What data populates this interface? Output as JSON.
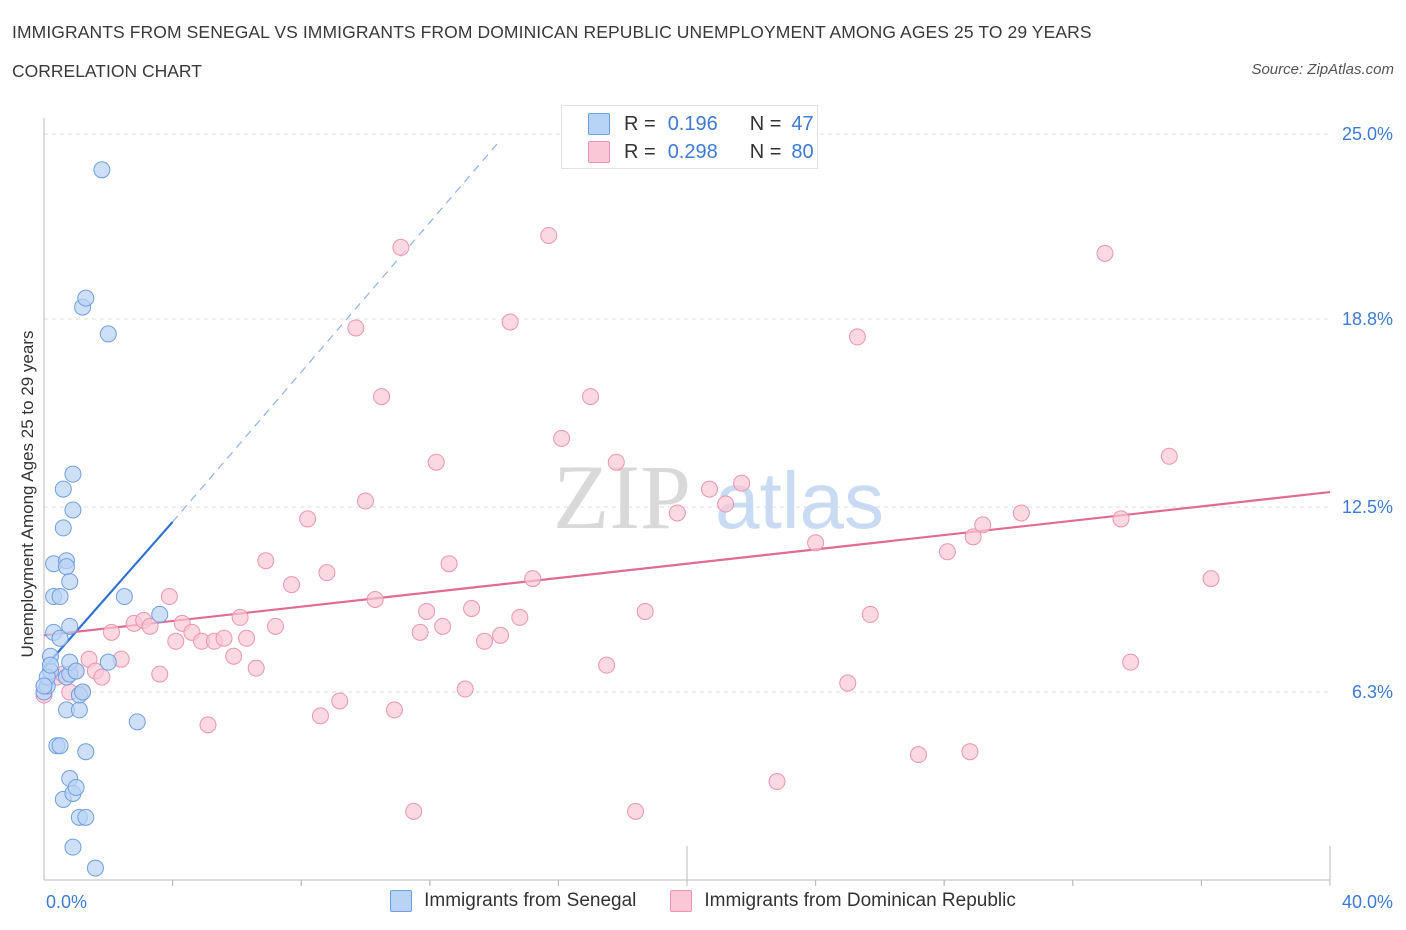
{
  "title": "IMMIGRANTS FROM SENEGAL VS IMMIGRANTS FROM DOMINICAN REPUBLIC UNEMPLOYMENT AMONG AGES 25 TO 29 YEARS",
  "subtitle": "CORRELATION CHART",
  "source": "Source: ZipAtlas.com",
  "watermark": {
    "zip": "ZIP",
    "atlas": "atlas"
  },
  "legend": {
    "r_label": "R =",
    "n_label": "N =",
    "senegal": {
      "r": "0.196",
      "n": "47"
    },
    "dominican": {
      "r": "0.298",
      "n": "80"
    }
  },
  "colors": {
    "senegal_fill": "#b9d3f5",
    "senegal_stroke": "#6f9fe0",
    "senegal_line": "#2f72d0",
    "dominican_fill": "#f9c7d6",
    "dominican_stroke": "#ec94b1",
    "dominican_line": "#e06b94",
    "axis_text": "#3d7bd6",
    "grid": "#dddddd"
  },
  "chart_data": {
    "type": "scatter",
    "ylabel": "Unemployment Among Ages 25 to 29 years",
    "x_tick_labels": [
      "0.0%",
      "40.0%"
    ],
    "y_tick_labels": [
      "6.3%",
      "12.5%",
      "18.8%",
      "25.0%"
    ],
    "y_ticks": [
      6.3,
      12.5,
      18.8,
      25.0
    ],
    "xlim": [
      0,
      40
    ],
    "ylim": [
      0,
      25.5
    ],
    "series": [
      {
        "name": "Immigrants from Senegal",
        "points": [
          [
            0.0,
            6.3
          ],
          [
            0.1,
            6.5
          ],
          [
            0.2,
            7.0
          ],
          [
            0.2,
            7.5
          ],
          [
            0.3,
            8.3
          ],
          [
            0.3,
            10.6
          ],
          [
            0.3,
            9.5
          ],
          [
            0.4,
            4.5
          ],
          [
            0.5,
            4.5
          ],
          [
            0.5,
            8.1
          ],
          [
            0.5,
            9.5
          ],
          [
            0.6,
            2.7
          ],
          [
            0.6,
            11.8
          ],
          [
            0.6,
            13.1
          ],
          [
            0.7,
            10.7
          ],
          [
            0.7,
            10.5
          ],
          [
            0.7,
            6.8
          ],
          [
            0.7,
            5.7
          ],
          [
            0.8,
            3.4
          ],
          [
            0.8,
            6.9
          ],
          [
            0.8,
            7.3
          ],
          [
            0.8,
            10.0
          ],
          [
            0.8,
            8.5
          ],
          [
            0.9,
            1.1
          ],
          [
            0.9,
            2.9
          ],
          [
            0.9,
            13.6
          ],
          [
            0.9,
            12.4
          ],
          [
            1.0,
            3.1
          ],
          [
            1.0,
            7.0
          ],
          [
            1.1,
            5.7
          ],
          [
            1.1,
            6.2
          ],
          [
            1.1,
            2.1
          ],
          [
            1.2,
            6.3
          ],
          [
            1.2,
            19.2
          ],
          [
            1.3,
            19.5
          ],
          [
            1.3,
            2.1
          ],
          [
            1.3,
            4.3
          ],
          [
            1.6,
            0.4
          ],
          [
            1.8,
            23.8
          ],
          [
            2.0,
            18.3
          ],
          [
            2.0,
            7.3
          ],
          [
            2.5,
            9.5
          ],
          [
            2.9,
            5.3
          ],
          [
            3.6,
            8.9
          ],
          [
            0.1,
            6.8
          ],
          [
            0.2,
            7.2
          ],
          [
            0.0,
            6.5
          ]
        ]
      },
      {
        "name": "Immigrants from Dominican Republic",
        "points": [
          [
            0.0,
            6.2
          ],
          [
            0.4,
            6.8
          ],
          [
            0.6,
            6.9
          ],
          [
            0.8,
            6.3
          ],
          [
            1.0,
            7.0
          ],
          [
            1.2,
            6.3
          ],
          [
            1.4,
            7.4
          ],
          [
            1.6,
            7.0
          ],
          [
            1.8,
            6.8
          ],
          [
            2.1,
            8.3
          ],
          [
            2.4,
            7.4
          ],
          [
            2.8,
            8.6
          ],
          [
            3.1,
            8.7
          ],
          [
            3.3,
            8.5
          ],
          [
            3.6,
            6.9
          ],
          [
            3.9,
            9.5
          ],
          [
            4.1,
            8.0
          ],
          [
            4.3,
            8.6
          ],
          [
            4.6,
            8.3
          ],
          [
            4.9,
            8.0
          ],
          [
            5.1,
            5.2
          ],
          [
            5.3,
            8.0
          ],
          [
            5.6,
            8.1
          ],
          [
            5.9,
            7.5
          ],
          [
            6.1,
            8.8
          ],
          [
            6.3,
            8.1
          ],
          [
            6.6,
            7.1
          ],
          [
            6.9,
            10.7
          ],
          [
            7.2,
            8.5
          ],
          [
            7.7,
            9.9
          ],
          [
            8.2,
            12.1
          ],
          [
            8.6,
            5.5
          ],
          [
            8.8,
            10.3
          ],
          [
            9.2,
            6.0
          ],
          [
            9.7,
            18.5
          ],
          [
            10.0,
            12.7
          ],
          [
            10.3,
            9.4
          ],
          [
            10.5,
            16.2
          ],
          [
            10.9,
            5.7
          ],
          [
            11.1,
            21.2
          ],
          [
            11.5,
            2.3
          ],
          [
            11.7,
            8.3
          ],
          [
            11.9,
            9.0
          ],
          [
            12.2,
            14.0
          ],
          [
            12.4,
            8.5
          ],
          [
            12.6,
            10.6
          ],
          [
            13.1,
            6.4
          ],
          [
            13.3,
            9.1
          ],
          [
            13.7,
            8.0
          ],
          [
            14.2,
            8.2
          ],
          [
            14.5,
            18.7
          ],
          [
            14.8,
            8.8
          ],
          [
            15.2,
            10.1
          ],
          [
            15.7,
            21.6
          ],
          [
            16.1,
            14.8
          ],
          [
            17.0,
            16.2
          ],
          [
            17.5,
            7.2
          ],
          [
            17.8,
            14.0
          ],
          [
            18.4,
            2.3
          ],
          [
            18.7,
            9.0
          ],
          [
            19.7,
            12.3
          ],
          [
            20.7,
            13.1
          ],
          [
            21.2,
            12.6
          ],
          [
            21.7,
            13.3
          ],
          [
            22.8,
            3.3
          ],
          [
            24.0,
            11.3
          ],
          [
            25.0,
            6.6
          ],
          [
            25.3,
            18.2
          ],
          [
            25.7,
            8.9
          ],
          [
            27.2,
            4.2
          ],
          [
            28.1,
            11.0
          ],
          [
            28.8,
            4.3
          ],
          [
            28.9,
            11.5
          ],
          [
            29.2,
            11.9
          ],
          [
            30.4,
            12.3
          ],
          [
            33.0,
            21.0
          ],
          [
            33.5,
            12.1
          ],
          [
            33.8,
            7.3
          ],
          [
            35.0,
            14.2
          ],
          [
            36.3,
            10.1
          ]
        ]
      }
    ],
    "trendlines": [
      {
        "name": "Senegal solid",
        "from": [
          0.0,
          7.1
        ],
        "to": [
          4.0,
          12.0
        ]
      },
      {
        "name": "Senegal dashed",
        "from": [
          4.0,
          12.0
        ],
        "to": [
          14.2,
          24.8
        ]
      },
      {
        "name": "Dominican",
        "from": [
          0.0,
          8.2
        ],
        "to": [
          40.0,
          13.0
        ]
      }
    ]
  }
}
